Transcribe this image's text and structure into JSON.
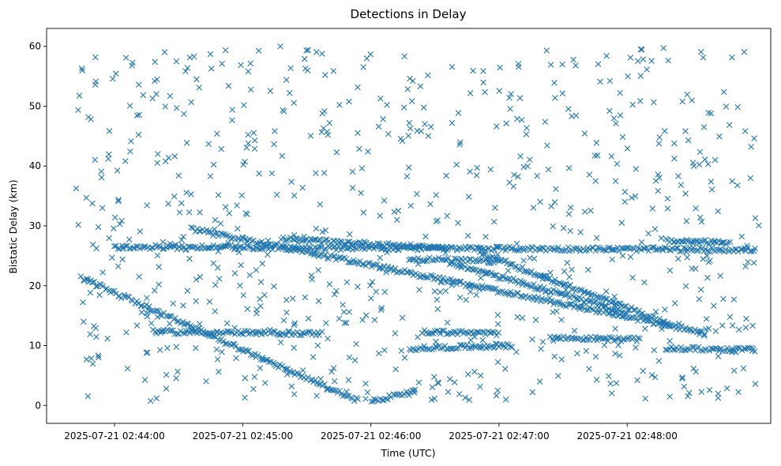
{
  "chart_data": {
    "type": "scatter",
    "title": "Detections in Delay",
    "xlabel": "Time (UTC)",
    "ylabel": "Bistatic Delay (km)",
    "marker": "x",
    "color": "#1f77b4",
    "x_unit": "minutes after 2025-07-21 02:43:00 UTC",
    "xlim": [
      0.47,
      6.12
    ],
    "ylim": [
      -3,
      63
    ],
    "x_ticks": [
      {
        "value": 1,
        "label": "2025-07-21 02:44:00"
      },
      {
        "value": 2,
        "label": "2025-07-21 02:45:00"
      },
      {
        "value": 3,
        "label": "2025-07-21 02:46:00"
      },
      {
        "value": 4,
        "label": "2025-07-21 02:47:00"
      },
      {
        "value": 5,
        "label": "2025-07-21 02:48:00"
      }
    ],
    "y_ticks": [
      {
        "value": 0,
        "label": "0"
      },
      {
        "value": 10,
        "label": "10"
      },
      {
        "value": 20,
        "label": "20"
      },
      {
        "value": 30,
        "label": "30"
      },
      {
        "value": 40,
        "label": "40"
      },
      {
        "value": 50,
        "label": "50"
      },
      {
        "value": 60,
        "label": "60"
      }
    ],
    "tracks": [
      {
        "name": "descending-track-a",
        "x_start": 0.74,
        "x_end": 2.9,
        "y_start": 21.3,
        "y_end": 0.8
      },
      {
        "name": "descending-track-b",
        "x_start": 1.6,
        "x_end": 5.6,
        "y_start": 29.5,
        "y_end": 12.2
      },
      {
        "name": "descending-track-c",
        "x_start": 3.62,
        "x_end": 5.0,
        "y_start": 23.8,
        "y_end": 15.5
      },
      {
        "name": "descending-track-d",
        "x_start": 3.85,
        "x_end": 5.35,
        "y_start": 25.5,
        "y_end": 13.5
      },
      {
        "name": "ascending-track",
        "x_start": 3.0,
        "x_end": 3.35,
        "y_start": 0.6,
        "y_end": 2.5
      },
      {
        "name": "level-track-26",
        "x_start": 1.0,
        "x_end": 6.0,
        "y_start": 26.5,
        "y_end": 26.0
      },
      {
        "name": "level-track-27",
        "x_start": 2.3,
        "x_end": 3.6,
        "y_start": 27.8,
        "y_end": 26.3
      },
      {
        "name": "level-track-12a",
        "x_start": 1.3,
        "x_end": 2.6,
        "y_start": 12.3,
        "y_end": 12.0
      },
      {
        "name": "level-track-12b",
        "x_start": 3.4,
        "x_end": 4.0,
        "y_start": 12.3,
        "y_end": 12.0
      },
      {
        "name": "level-track-10a",
        "x_start": 3.3,
        "x_end": 4.1,
        "y_start": 9.5,
        "y_end": 10.0
      },
      {
        "name": "level-track-11",
        "x_start": 4.4,
        "x_end": 5.1,
        "y_start": 11.3,
        "y_end": 11.0
      },
      {
        "name": "level-track-9",
        "x_start": 5.3,
        "x_end": 6.0,
        "y_start": 9.5,
        "y_end": 9.3
      },
      {
        "name": "level-track-27b",
        "x_start": 5.3,
        "x_end": 5.8,
        "y_start": 27.5,
        "y_end": 27.2
      },
      {
        "name": "level-track-24",
        "x_start": 3.3,
        "x_end": 4.0,
        "y_start": 24.5,
        "y_end": 24.0
      }
    ],
    "clutter": {
      "description_count": 780,
      "x_range": [
        0.7,
        6.05
      ],
      "y_range": [
        0.5,
        60
      ]
    }
  }
}
